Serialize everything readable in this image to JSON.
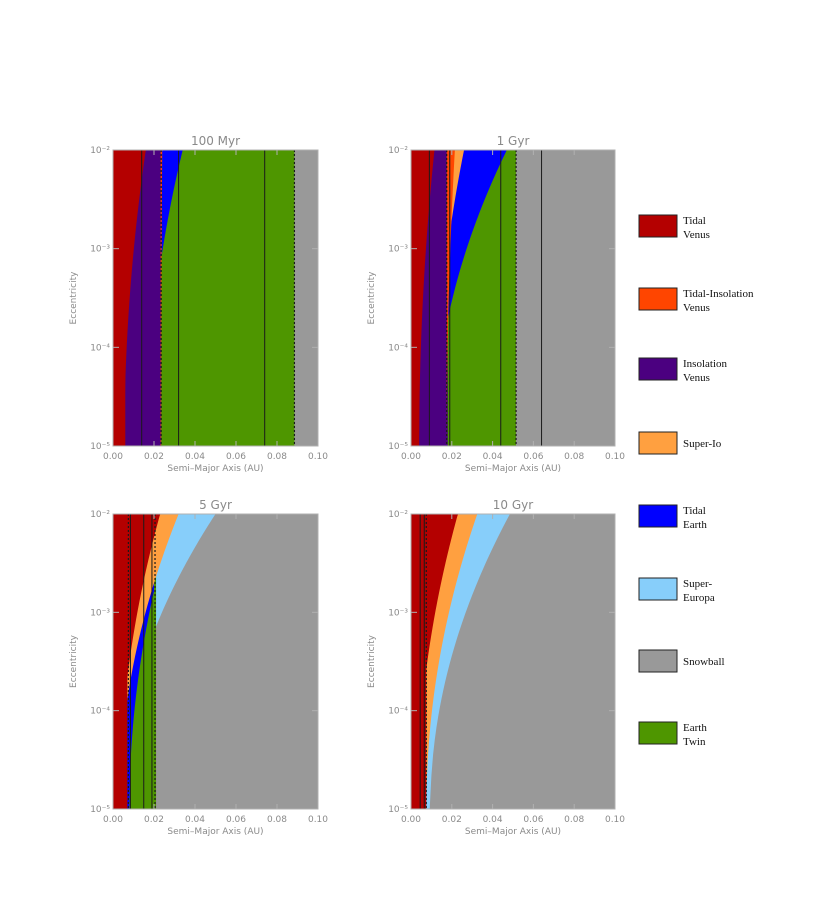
{
  "colors": {
    "tidal_venus": "#b40000",
    "tidal_insolation_venus": "#ff4500",
    "insolation_venus": "#4b0080",
    "super_io": "#ffa040",
    "tidal_earth": "#0000ff",
    "super_europa": "#87cefa",
    "snowball": "#999999",
    "earth_twin": "#4e9600"
  },
  "legend": [
    {
      "key": "tidal_venus",
      "lines": [
        "Tidal",
        "Venus"
      ]
    },
    {
      "key": "tidal_insolation_venus",
      "lines": [
        "Tidal-Insolation",
        "Venus"
      ]
    },
    {
      "key": "insolation_venus",
      "lines": [
        "Insolation",
        "Venus"
      ]
    },
    {
      "key": "super_io",
      "lines": [
        "Super-Io"
      ]
    },
    {
      "key": "tidal_earth",
      "lines": [
        "Tidal",
        "Earth"
      ]
    },
    {
      "key": "super_europa",
      "lines": [
        "Super-",
        "Europa"
      ]
    },
    {
      "key": "snowball",
      "lines": [
        "Snowball"
      ]
    },
    {
      "key": "earth_twin",
      "lines": [
        "Earth",
        "Twin"
      ]
    }
  ],
  "chart_data": [
    {
      "type": "area",
      "title": "100 Myr",
      "xlabel": "Semi–Major Axis (AU)",
      "ylabel": "Eccentricity",
      "xlim": [
        0,
        0.1
      ],
      "xticks": [
        "0.00",
        "0.02",
        "0.04",
        "0.06",
        "0.08",
        "0.10"
      ],
      "ylim_log10": [
        -5,
        -2
      ],
      "yticks": [
        "10⁻⁵",
        "10⁻⁴",
        "10⁻³",
        "10⁻²"
      ],
      "regions": [
        {
          "key": "snowball",
          "x": [
            0,
            0.1
          ]
        },
        {
          "key": "earth_twin",
          "x": [
            0.0165,
            0.0885
          ]
        },
        {
          "key": "tidal_earth",
          "x": [
            0.0165,
            0.0345
          ],
          "upper": {
            "a0": 0.0165,
            "a1": 0.034
          }
        },
        {
          "key": "super_io",
          "x": [
            0.0165,
            0.025
          ],
          "upper": {
            "a0": 0.0165,
            "a1": 0.024
          }
        },
        {
          "key": "insolation_venus",
          "x": [
            0,
            0.0235
          ]
        },
        {
          "key": "tidal_venus",
          "x": [
            0,
            0.017
          ],
          "upper": {
            "a0": 0.0055,
            "a1": 0.016
          }
        },
        {
          "key": "tidal_venus",
          "x": [
            0,
            0.006
          ]
        },
        {
          "key": "tidal_insolation_venus",
          "x": [
            0.0232,
            0.024
          ],
          "upper": {
            "a0": 0.0235,
            "a1": 0.024
          }
        }
      ],
      "solid_lines": [
        0.014,
        0.032,
        0.074
      ],
      "dotted_lines": [
        0.0235,
        0.0885
      ]
    },
    {
      "type": "area",
      "title": "1 Gyr",
      "xlabel": "Semi–Major Axis (AU)",
      "ylabel": "Eccentricity",
      "xlim": [
        0,
        0.1
      ],
      "xticks": [
        "0.00",
        "0.02",
        "0.04",
        "0.06",
        "0.08",
        "0.10"
      ],
      "ylim_log10": [
        -5,
        -2
      ],
      "yticks": [
        "10⁻⁵",
        "10⁻⁴",
        "10⁻³",
        "10⁻²"
      ],
      "regions": [
        {
          "key": "snowball",
          "x": [
            0,
            0.1
          ]
        },
        {
          "key": "earth_twin",
          "x": [
            0.0115,
            0.0515
          ]
        },
        {
          "key": "tidal_earth",
          "x": [
            0.0115,
            0.0475
          ],
          "upper": {
            "a0": 0.0115,
            "a1": 0.047
          }
        },
        {
          "key": "super_io",
          "x": [
            0.0115,
            0.026
          ],
          "upper": {
            "a0": 0.0115,
            "a1": 0.026
          }
        },
        {
          "key": "insolation_venus",
          "x": [
            0,
            0.018
          ]
        },
        {
          "key": "tidal_venus",
          "x": [
            0,
            0.0115
          ],
          "upper": {
            "a0": 0.004,
            "a1": 0.0115
          }
        },
        {
          "key": "tidal_venus",
          "x": [
            0,
            0.004
          ]
        },
        {
          "key": "tidal_insolation_venus",
          "x": [
            0.0175,
            0.0225
          ],
          "upper": {
            "a0": 0.0175,
            "a1": 0.0215
          }
        }
      ],
      "solid_lines": [
        0.009,
        0.019,
        0.044,
        0.064
      ],
      "dotted_lines": [
        0.0175,
        0.0515
      ]
    },
    {
      "type": "area",
      "title": "5 Gyr",
      "xlabel": "Semi–Major Axis (AU)",
      "ylabel": "Eccentricity",
      "xlim": [
        0,
        0.1
      ],
      "xticks": [
        "0.00",
        "0.02",
        "0.04",
        "0.06",
        "0.08",
        "0.10"
      ],
      "ylim_log10": [
        -5,
        -2
      ],
      "yticks": [
        "10⁻⁵",
        "10⁻⁴",
        "10⁻³",
        "10⁻²"
      ],
      "regions": [
        {
          "key": "snowball",
          "x": [
            0,
            0.1
          ]
        },
        {
          "key": "super_europa",
          "x": [
            0,
            0.05
          ],
          "upper": {
            "a0": 0.003,
            "a1": 0.05
          }
        },
        {
          "key": "earth_twin",
          "x": [
            0,
            0.021
          ]
        },
        {
          "key": "tidal_earth",
          "x": [
            0,
            0.02
          ],
          "upper": {
            "a0": 0.008,
            "a1": 0.03
          }
        },
        {
          "key": "super_io",
          "x": [
            0,
            0.0325
          ],
          "upper": {
            "a0": 0.003,
            "a1": 0.032
          }
        },
        {
          "key": "tidal_venus",
          "x": [
            0,
            0.0235
          ],
          "upper": {
            "a0": 0.003,
            "a1": 0.023
          }
        },
        {
          "key": "tidal_venus",
          "x": [
            0,
            0.007
          ]
        }
      ],
      "solid_lines": [
        0.0085,
        0.015,
        0.019
      ],
      "dotted_lines": [
        0.0075,
        0.0205
      ]
    },
    {
      "type": "area",
      "title": "10 Gyr",
      "xlabel": "Semi–Major Axis (AU)",
      "ylabel": "Eccentricity",
      "xlim": [
        0,
        0.1
      ],
      "xticks": [
        "0.00",
        "0.02",
        "0.04",
        "0.06",
        "0.08",
        "0.10"
      ],
      "ylim_log10": [
        -5,
        -2
      ],
      "yticks": [
        "10⁻⁵",
        "10⁻⁴",
        "10⁻³",
        "10⁻²"
      ],
      "regions": [
        {
          "key": "snowball",
          "x": [
            0,
            0.1
          ]
        },
        {
          "key": "super_europa",
          "x": [
            0,
            0.05
          ],
          "upper": {
            "a0": 0.0095,
            "a1": 0.0485
          }
        },
        {
          "key": "super_io",
          "x": [
            0,
            0.033
          ],
          "upper": {
            "a0": 0.0075,
            "a1": 0.0325
          }
        },
        {
          "key": "tidal_venus",
          "x": [
            0,
            0.0235
          ],
          "upper": {
            "a0": 0.003,
            "a1": 0.023
          }
        },
        {
          "key": "tidal_venus",
          "x": [
            0,
            0.0075
          ]
        }
      ],
      "solid_lines": [
        0.0045,
        0.0065
      ],
      "dotted_lines": [
        0.0075
      ]
    }
  ]
}
